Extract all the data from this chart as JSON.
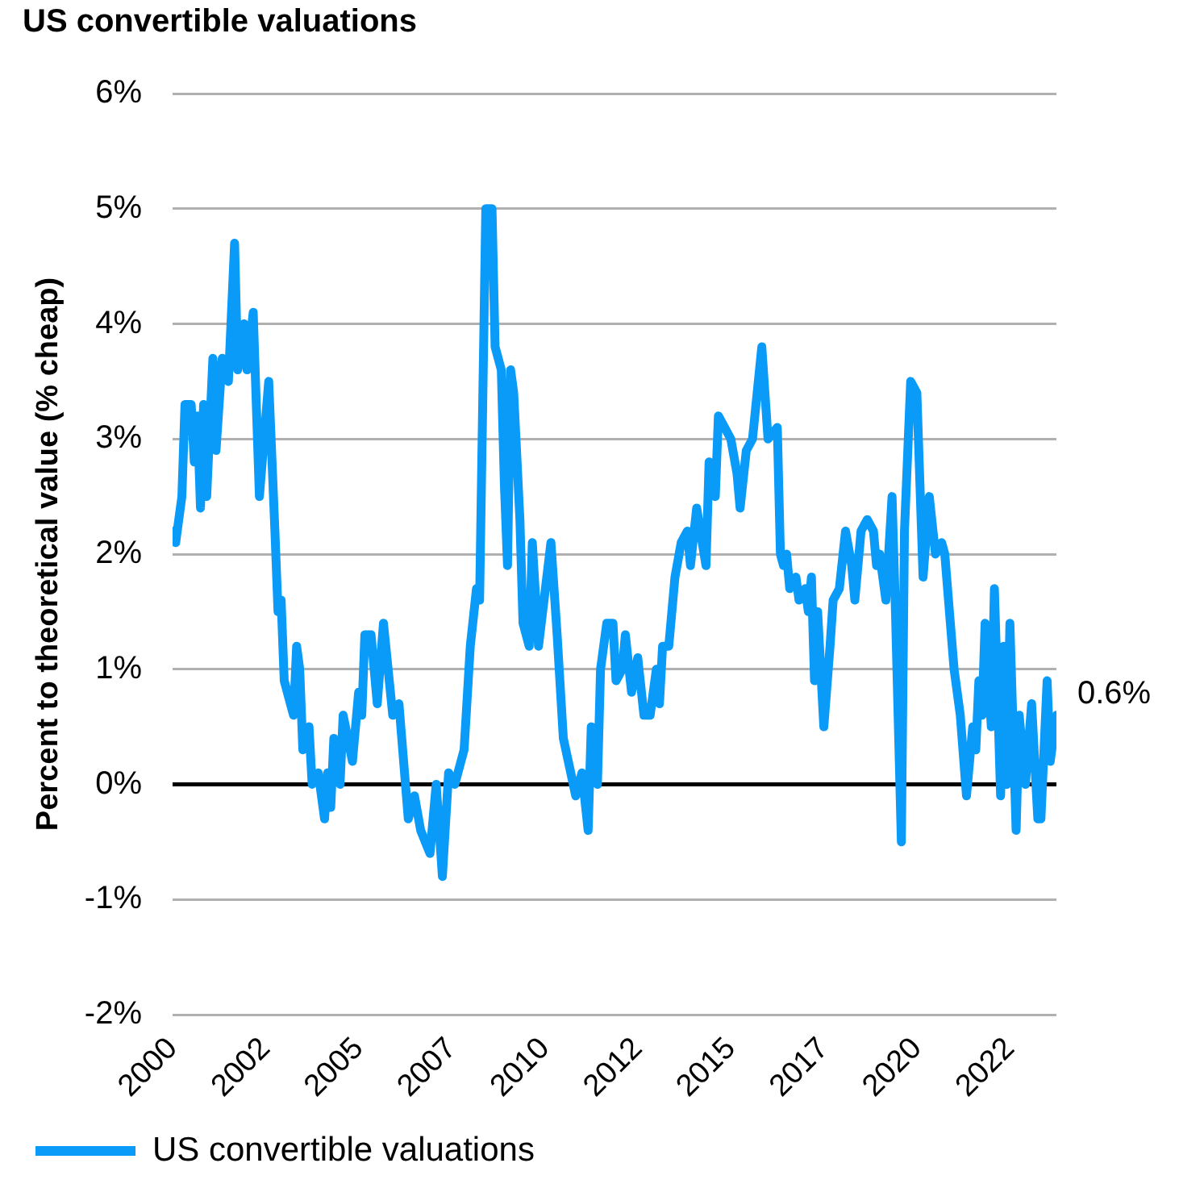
{
  "chart_data": {
    "type": "line",
    "title": "US convertible valuations",
    "ylabel": "Percent to theoretical value (% cheap)",
    "x": [
      "2000-01",
      "2000-02",
      "2000-04",
      "2000-05",
      "2000-07",
      "2000-08",
      "2000-09",
      "2000-10",
      "2000-11",
      "2000-12",
      "2001-02",
      "2001-03",
      "2001-05",
      "2001-07",
      "2001-09",
      "2001-10",
      "2001-12",
      "2002-01",
      "2002-03",
      "2002-05",
      "2002-08",
      "2002-10",
      "2002-11",
      "2002-12",
      "2003-01",
      "2003-04",
      "2003-05",
      "2003-06",
      "2003-07",
      "2003-09",
      "2003-10",
      "2003-12",
      "2004-02",
      "2004-03",
      "2004-04",
      "2004-05",
      "2004-07",
      "2004-08",
      "2004-11",
      "2005-01",
      "2005-02",
      "2005-03",
      "2005-05",
      "2005-07",
      "2005-09",
      "2005-12",
      "2006-02",
      "2006-05",
      "2006-07",
      "2006-09",
      "2006-12",
      "2007-02",
      "2007-04",
      "2007-06",
      "2007-08",
      "2007-11",
      "2008-01",
      "2008-03",
      "2008-04",
      "2008-06",
      "2008-08",
      "2008-09",
      "2008-11",
      "2008-12",
      "2009-01",
      "2009-02",
      "2009-03",
      "2009-05",
      "2009-06",
      "2009-08",
      "2009-09",
      "2009-11",
      "2010-03",
      "2010-05",
      "2010-07",
      "2010-11",
      "2011-01",
      "2011-03",
      "2011-04",
      "2011-06",
      "2011-07",
      "2011-09",
      "2011-11",
      "2011-12",
      "2012-02",
      "2012-03",
      "2012-05",
      "2012-07",
      "2012-09",
      "2012-11",
      "2013-01",
      "2013-02",
      "2013-03",
      "2013-05",
      "2013-07",
      "2013-09",
      "2013-11",
      "2013-12",
      "2014-02",
      "2014-05",
      "2014-06",
      "2014-08",
      "2014-09",
      "2014-11",
      "2015-01",
      "2015-03",
      "2015-04",
      "2015-06",
      "2015-08",
      "2015-11",
      "2016-01",
      "2016-04",
      "2016-05",
      "2016-06",
      "2016-07",
      "2016-08",
      "2016-10",
      "2016-11",
      "2017-01",
      "2017-02",
      "2017-03",
      "2017-04",
      "2017-05",
      "2017-07",
      "2017-09",
      "2017-10",
      "2017-12",
      "2018-02",
      "2018-04",
      "2018-05",
      "2018-07",
      "2018-09",
      "2018-11",
      "2018-12",
      "2019-01",
      "2019-03",
      "2019-05",
      "2019-06",
      "2019-08",
      "2019-09",
      "2019-11",
      "2020-01",
      "2020-03",
      "2020-05",
      "2020-07",
      "2020-09",
      "2020-10",
      "2021-01",
      "2021-03",
      "2021-05",
      "2021-07",
      "2021-08",
      "2021-09",
      "2021-10",
      "2021-11",
      "2022-01",
      "2022-02",
      "2022-04",
      "2022-05",
      "2022-06",
      "2022-07",
      "2022-09",
      "2022-10",
      "2022-12",
      "2023-02",
      "2023-04",
      "2023-05",
      "2023-07",
      "2023-08",
      "2023-10"
    ],
    "series": [
      {
        "name": "US convertible valuations",
        "color": "#0a9af8",
        "values": [
          2.2,
          2.1,
          2.5,
          3.3,
          3.3,
          2.8,
          3.2,
          2.4,
          3.3,
          2.5,
          3.7,
          2.9,
          3.7,
          3.5,
          4.7,
          3.6,
          4.0,
          3.6,
          4.1,
          2.5,
          3.5,
          2.2,
          1.5,
          1.6,
          0.9,
          0.6,
          1.2,
          1.0,
          0.3,
          0.5,
          0.0,
          0.1,
          -0.3,
          0.1,
          -0.2,
          0.4,
          0.0,
          0.6,
          0.2,
          0.8,
          0.6,
          1.3,
          1.3,
          0.7,
          1.4,
          0.6,
          0.7,
          -0.3,
          -0.1,
          -0.4,
          -0.6,
          0.0,
          -0.8,
          0.1,
          0.0,
          0.3,
          1.2,
          1.7,
          1.6,
          5.0,
          5.0,
          3.8,
          3.6,
          2.6,
          1.9,
          3.6,
          3.4,
          2.3,
          1.4,
          1.2,
          2.1,
          1.2,
          2.1,
          1.3,
          0.4,
          -0.1,
          0.1,
          -0.4,
          0.5,
          0.0,
          1.0,
          1.4,
          1.4,
          0.9,
          1.0,
          1.3,
          0.8,
          1.1,
          0.6,
          0.6,
          1.0,
          0.7,
          1.2,
          1.2,
          1.8,
          2.1,
          2.2,
          1.9,
          2.4,
          1.9,
          2.8,
          2.5,
          3.2,
          3.1,
          3.0,
          2.7,
          2.4,
          2.9,
          3.0,
          3.8,
          3.0,
          3.1,
          2.0,
          1.9,
          2.0,
          1.7,
          1.8,
          1.6,
          1.7,
          1.5,
          1.8,
          0.9,
          1.5,
          0.5,
          1.2,
          1.6,
          1.7,
          2.2,
          1.9,
          1.6,
          2.2,
          2.3,
          2.2,
          1.9,
          2.0,
          1.6,
          2.5,
          1.6,
          -0.5,
          2.2,
          3.5,
          3.4,
          1.8,
          2.5,
          2.0,
          2.1,
          2.0,
          1.0,
          0.6,
          -0.1,
          0.5,
          0.3,
          0.9,
          0.6,
          1.4,
          0.5,
          1.7,
          -0.1,
          1.2,
          0.0,
          1.4,
          -0.4,
          0.6,
          0.0,
          0.7,
          -0.3,
          -0.3,
          0.9,
          0.2,
          0.6
        ]
      }
    ],
    "xlim": [
      "2000-01",
      "2023-10"
    ],
    "xticks": [
      {
        "value": "2000-01",
        "label": "2000"
      },
      {
        "value": "2002-07",
        "label": "2002"
      },
      {
        "value": "2005-01",
        "label": "2005"
      },
      {
        "value": "2007-07",
        "label": "2007"
      },
      {
        "value": "2010-01",
        "label": "2010"
      },
      {
        "value": "2012-07",
        "label": "2012"
      },
      {
        "value": "2015-01",
        "label": "2015"
      },
      {
        "value": "2017-07",
        "label": "2017"
      },
      {
        "value": "2020-01",
        "label": "2020"
      },
      {
        "value": "2022-07",
        "label": "2022"
      }
    ],
    "ylim": [
      -2,
      6
    ],
    "yticks": [
      {
        "value": -2,
        "label": "-2%"
      },
      {
        "value": -1,
        "label": "-1%"
      },
      {
        "value": 0,
        "label": "0%"
      },
      {
        "value": 1,
        "label": "1%"
      },
      {
        "value": 2,
        "label": "2%"
      },
      {
        "value": 3,
        "label": "3%"
      },
      {
        "value": 4,
        "label": "4%"
      },
      {
        "value": 5,
        "label": "5%"
      },
      {
        "value": 6,
        "label": "6%"
      }
    ],
    "ref_lines": [
      {
        "axis": "y",
        "value": 0,
        "color": "#000000"
      }
    ],
    "annotations": [
      {
        "text": "0.6%",
        "x": "2023-10",
        "y": 0.6
      }
    ],
    "grid": "y",
    "legend": "bottom left",
    "marker": "none",
    "line_style": "solid"
  }
}
